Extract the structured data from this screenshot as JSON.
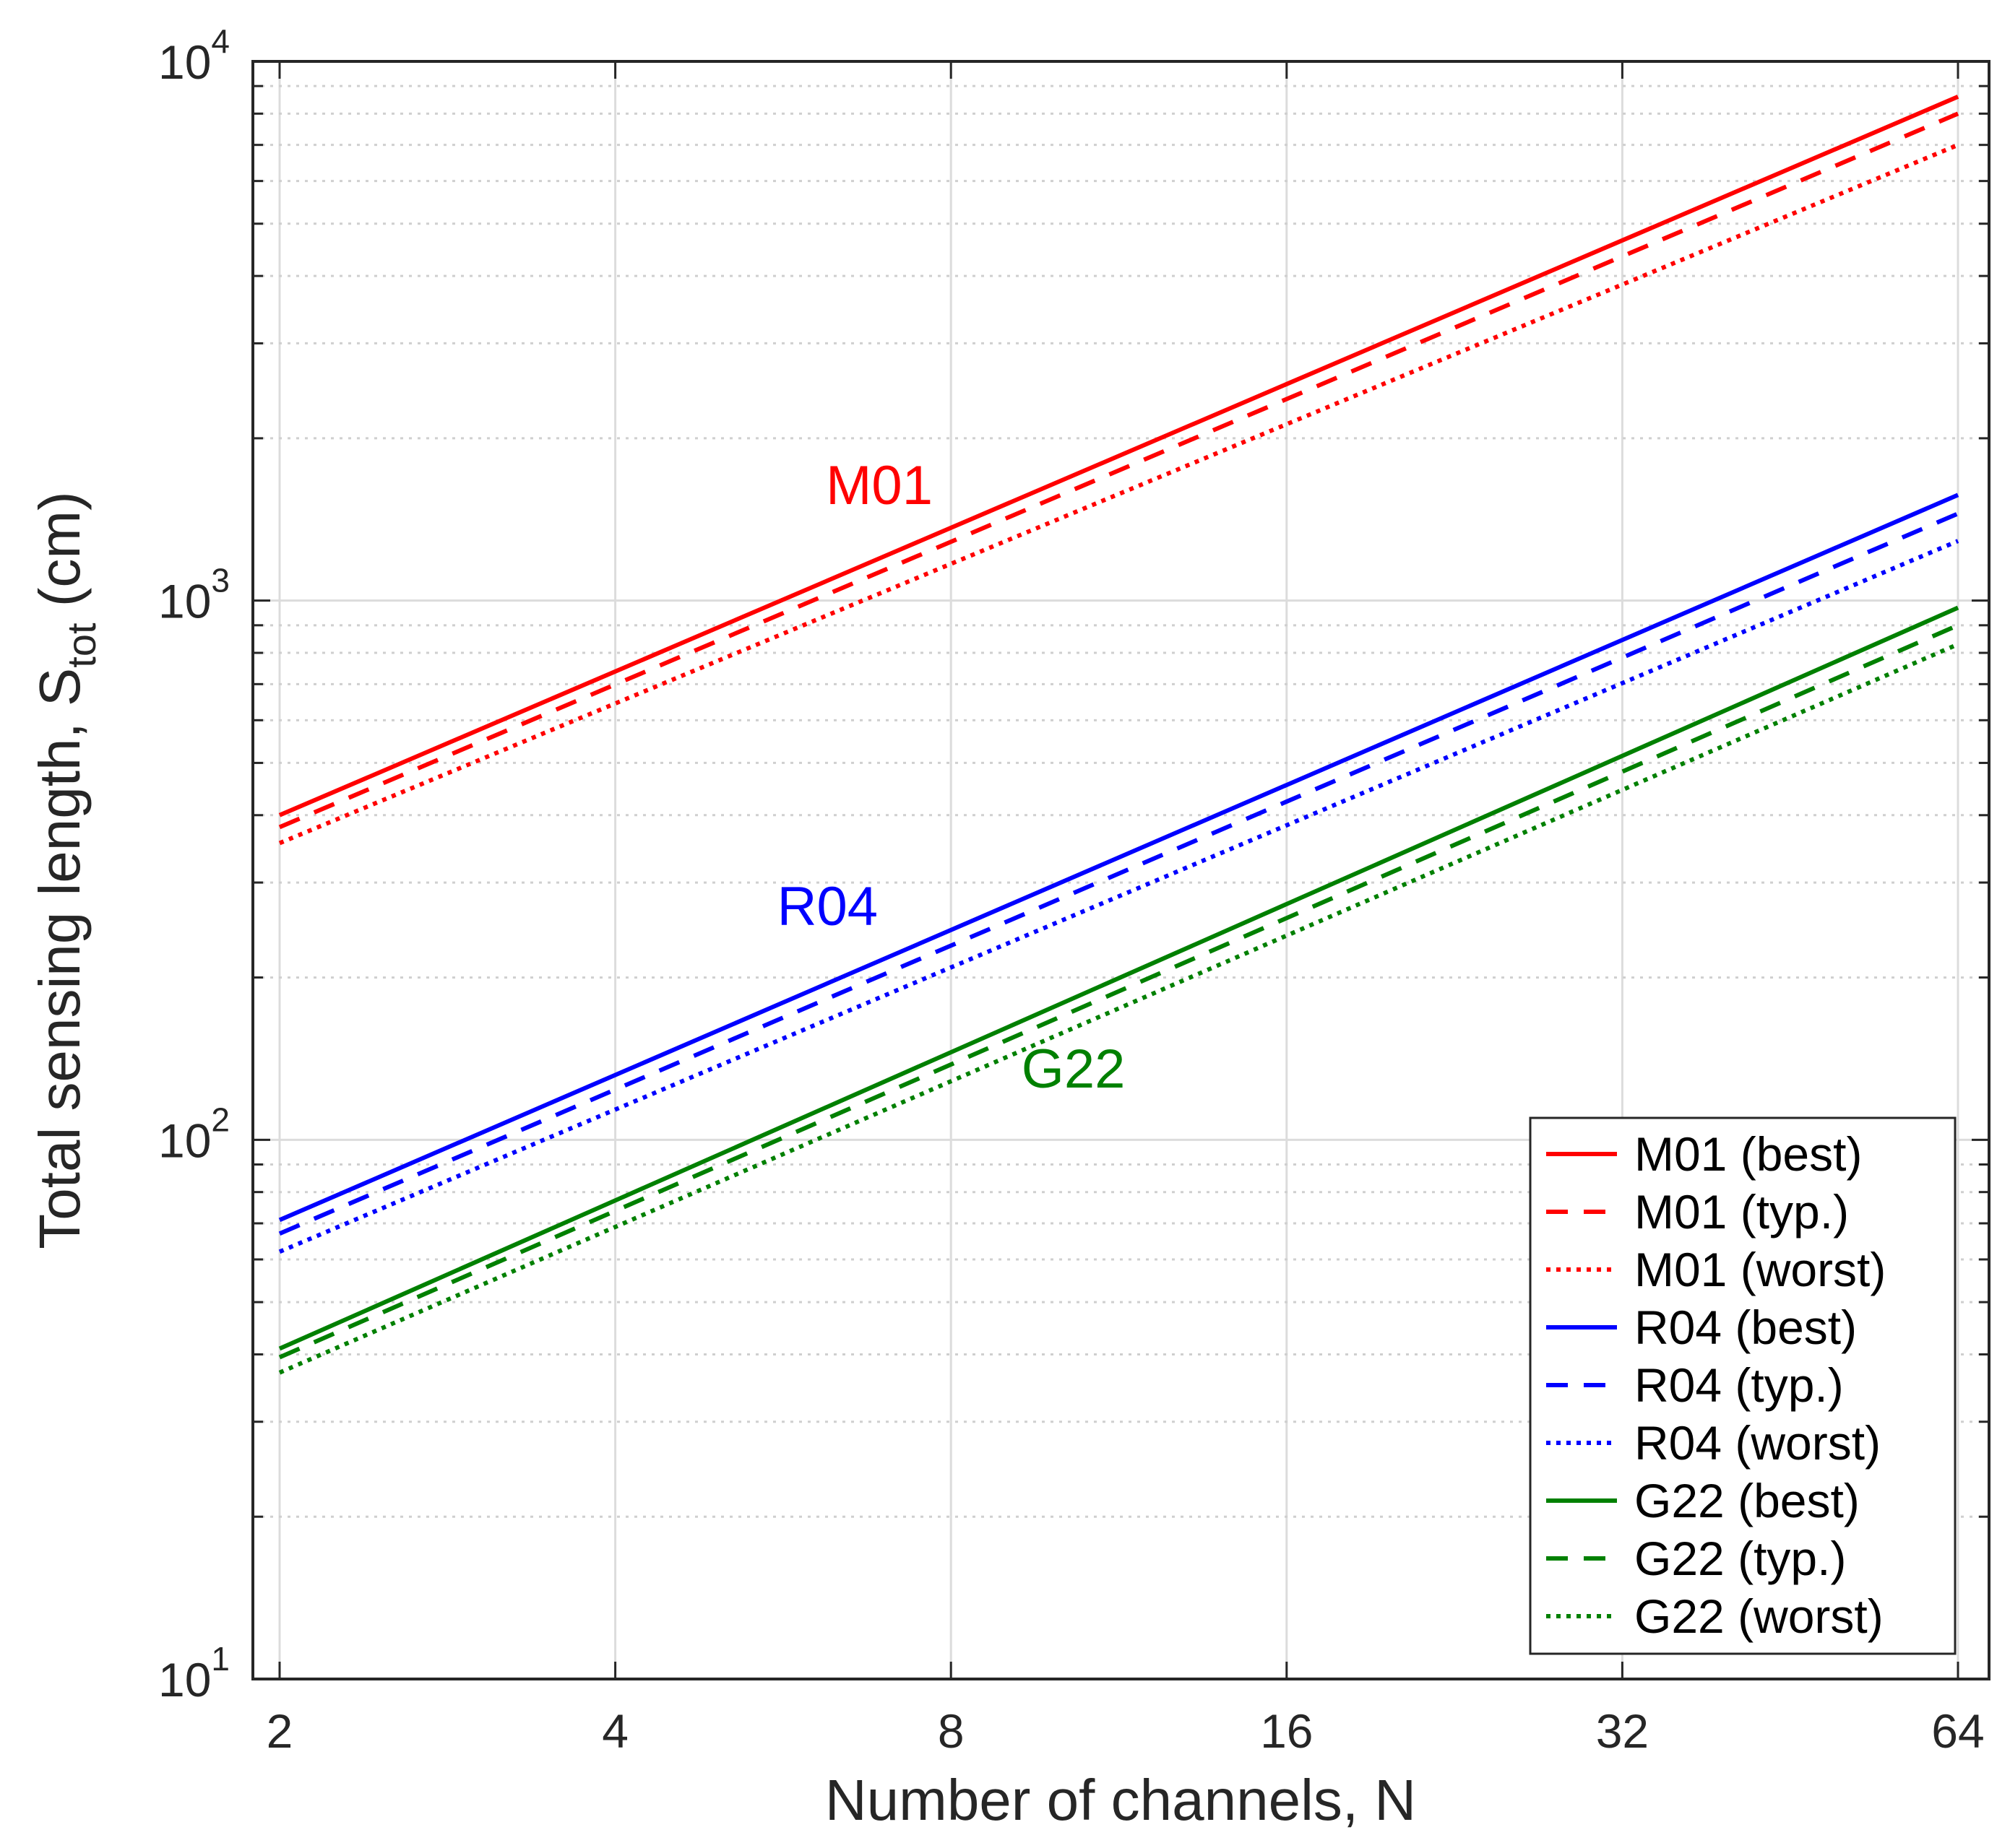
{
  "chart_data": {
    "type": "line",
    "title": "",
    "xlabel": "Number of channels, N",
    "ylabel_main": "Total sensing length, S",
    "ylabel_sub": "tot",
    "ylabel_unit": " (cm)",
    "xscale": "log2",
    "yscale": "log10",
    "xlim": [
      2,
      64
    ],
    "ylim": [
      10,
      10000
    ],
    "xticks": [
      2,
      4,
      8,
      16,
      32,
      64
    ],
    "xtick_labels": [
      "2",
      "4",
      "8",
      "16",
      "32",
      "64"
    ],
    "yticks": [
      {
        "value": 10,
        "base": "10",
        "exp": "1"
      },
      {
        "value": 100,
        "base": "10",
        "exp": "2"
      },
      {
        "value": 1000,
        "base": "10",
        "exp": "3"
      },
      {
        "value": 10000,
        "base": "10",
        "exp": "4"
      }
    ],
    "grid": true,
    "legend_position": "bottom-right",
    "series": [
      {
        "name": "M01 (best)",
        "color": "#ff0000",
        "style": "solid",
        "x": [
          2,
          64
        ],
        "y": [
          400,
          8600
        ]
      },
      {
        "name": "M01 (typ.)",
        "color": "#ff0000",
        "style": "dashed",
        "x": [
          2,
          64
        ],
        "y": [
          380,
          8000
        ]
      },
      {
        "name": "M01 (worst)",
        "color": "#ff0000",
        "style": "dotted",
        "x": [
          2,
          64
        ],
        "y": [
          355,
          7000
        ]
      },
      {
        "name": "R04 (best)",
        "color": "#0000ff",
        "style": "solid",
        "x": [
          2,
          64
        ],
        "y": [
          71,
          1570
        ]
      },
      {
        "name": "R04 (typ.)",
        "color": "#0000ff",
        "style": "dashed",
        "x": [
          2,
          64
        ],
        "y": [
          67,
          1450
        ]
      },
      {
        "name": "R04 (worst)",
        "color": "#0000ff",
        "style": "dotted",
        "x": [
          2,
          64
        ],
        "y": [
          62,
          1290
        ]
      },
      {
        "name": "G22 (best)",
        "color": "#008000",
        "style": "solid",
        "x": [
          2,
          64
        ],
        "y": [
          41,
          970
        ]
      },
      {
        "name": "G22 (typ.)",
        "color": "#008000",
        "style": "dashed",
        "x": [
          2,
          64
        ],
        "y": [
          39.5,
          900
        ]
      },
      {
        "name": "G22 (worst)",
        "color": "#008000",
        "style": "dotted",
        "x": [
          2,
          64
        ],
        "y": [
          37,
          830
        ]
      }
    ],
    "annotations": [
      {
        "text": "M01",
        "color": "#ff0000",
        "x": 6.9,
        "y": 1510
      },
      {
        "text": "R04",
        "color": "#0000ff",
        "x": 6.2,
        "y": 250
      },
      {
        "text": "G22",
        "color": "#008000",
        "x": 10.3,
        "y": 125
      }
    ]
  }
}
